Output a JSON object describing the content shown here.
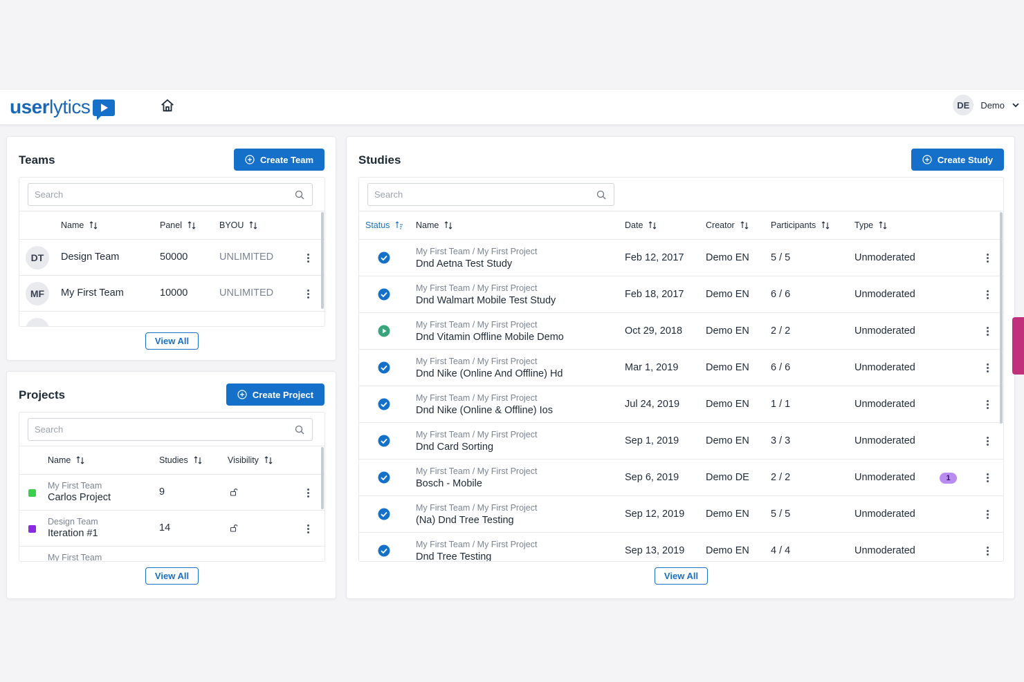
{
  "header": {
    "logo_bold": "user",
    "logo_light": "lytics",
    "user_initials": "DE",
    "user_name": "Demo"
  },
  "teams": {
    "title": "Teams",
    "create_label": "Create Team",
    "search_placeholder": "Search",
    "columns": [
      "Name",
      "Panel",
      "BYOU"
    ],
    "rows": [
      {
        "initials": "DT",
        "name": "Design Team",
        "panel": "50000",
        "byou": "UNLIMITED"
      },
      {
        "initials": "MF",
        "name": "My First Team",
        "panel": "10000",
        "byou": "UNLIMITED"
      }
    ],
    "view_all": "View All"
  },
  "projects": {
    "title": "Projects",
    "create_label": "Create Project",
    "search_placeholder": "Search",
    "columns": [
      "Name",
      "Studies",
      "Visibility"
    ],
    "rows": [
      {
        "team": "My First Team",
        "name": "Carlos Project",
        "studies": "9",
        "color": "#3ccf4e"
      },
      {
        "team": "Design Team",
        "name": "Iteration #1",
        "studies": "14",
        "color": "#8a2be2"
      },
      {
        "team": "My First Team",
        "name": "",
        "studies": "",
        "color": ""
      }
    ],
    "view_all": "View All"
  },
  "studies": {
    "title": "Studies",
    "create_label": "Create Study",
    "search_placeholder": "Search",
    "columns": [
      "Status",
      "Name",
      "Date",
      "Creator",
      "Participants",
      "Type"
    ],
    "rows": [
      {
        "status": "complete",
        "path": "My First Team / My First Project",
        "name": "Dnd Aetna Test Study",
        "date": "Feb 12, 2017",
        "creator": "Demo EN",
        "participants": "5 / 5",
        "type": "Unmoderated",
        "badge": ""
      },
      {
        "status": "complete",
        "path": "My First Team / My First Project",
        "name": "Dnd Walmart Mobile Test Study",
        "date": "Feb 18, 2017",
        "creator": "Demo EN",
        "participants": "6 / 6",
        "type": "Unmoderated",
        "badge": ""
      },
      {
        "status": "running",
        "path": "My First Team / My First Project",
        "name": "Dnd Vitamin Offline Mobile Demo",
        "date": "Oct 29, 2018",
        "creator": "Demo EN",
        "participants": "2 / 2",
        "type": "Unmoderated",
        "badge": ""
      },
      {
        "status": "complete",
        "path": "My First Team / My First Project",
        "name": "Dnd Nike (Online And Offline) Hd",
        "date": "Mar 1, 2019",
        "creator": "Demo EN",
        "participants": "6 / 6",
        "type": "Unmoderated",
        "badge": ""
      },
      {
        "status": "complete",
        "path": "My First Team / My First Project",
        "name": "Dnd Nike (Online & Offline) Ios",
        "date": "Jul 24, 2019",
        "creator": "Demo EN",
        "participants": "1 / 1",
        "type": "Unmoderated",
        "badge": ""
      },
      {
        "status": "complete",
        "path": "My First Team / My First Project",
        "name": "Dnd Card Sorting",
        "date": "Sep 1, 2019",
        "creator": "Demo EN",
        "participants": "3 / 3",
        "type": "Unmoderated",
        "badge": ""
      },
      {
        "status": "complete",
        "path": "My First Team / My First Project",
        "name": "Bosch - Mobile",
        "date": "Sep 6, 2019",
        "creator": "Demo DE",
        "participants": "2 / 2",
        "type": "Unmoderated",
        "badge": "1"
      },
      {
        "status": "complete",
        "path": "My First Team / My First Project",
        "name": "(Na) Dnd Tree Testing",
        "date": "Sep 12, 2019",
        "creator": "Demo EN",
        "participants": "5 / 5",
        "type": "Unmoderated",
        "badge": ""
      },
      {
        "status": "complete",
        "path": "My First Team / My First Project",
        "name": "Dnd Tree Testing",
        "date": "Sep 13, 2019",
        "creator": "Demo EN",
        "participants": "4 / 4",
        "type": "Unmoderated",
        "badge": ""
      }
    ],
    "view_all": "View All"
  },
  "colors": {
    "primary": "#1570c9",
    "running": "#3aa57a",
    "badge": "#b98cf0",
    "side_tab": "#c1307a"
  }
}
